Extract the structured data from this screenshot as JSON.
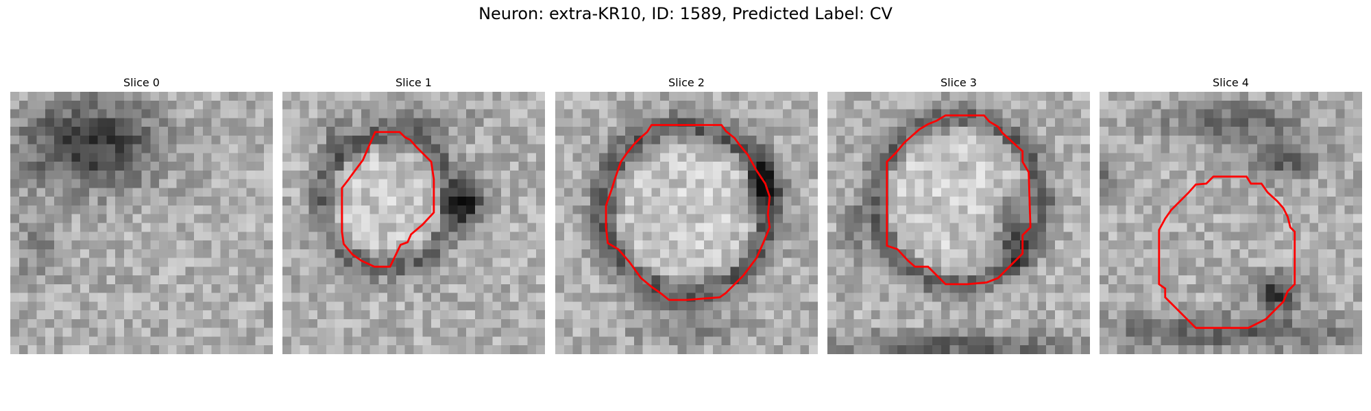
{
  "figure": {
    "title": "Neuron: extra-KR10, ID: 1589, Predicted Label: CV"
  },
  "colors": {
    "contour": "#ff0000",
    "background": "#ffffff"
  },
  "panels": [
    {
      "title": "Slice 0",
      "has_contour": false
    },
    {
      "title": "Slice 1",
      "has_contour": true
    },
    {
      "title": "Slice 2",
      "has_contour": true
    },
    {
      "title": "Slice 3",
      "has_contour": true
    },
    {
      "title": "Slice 4",
      "has_contour": true
    }
  ]
}
